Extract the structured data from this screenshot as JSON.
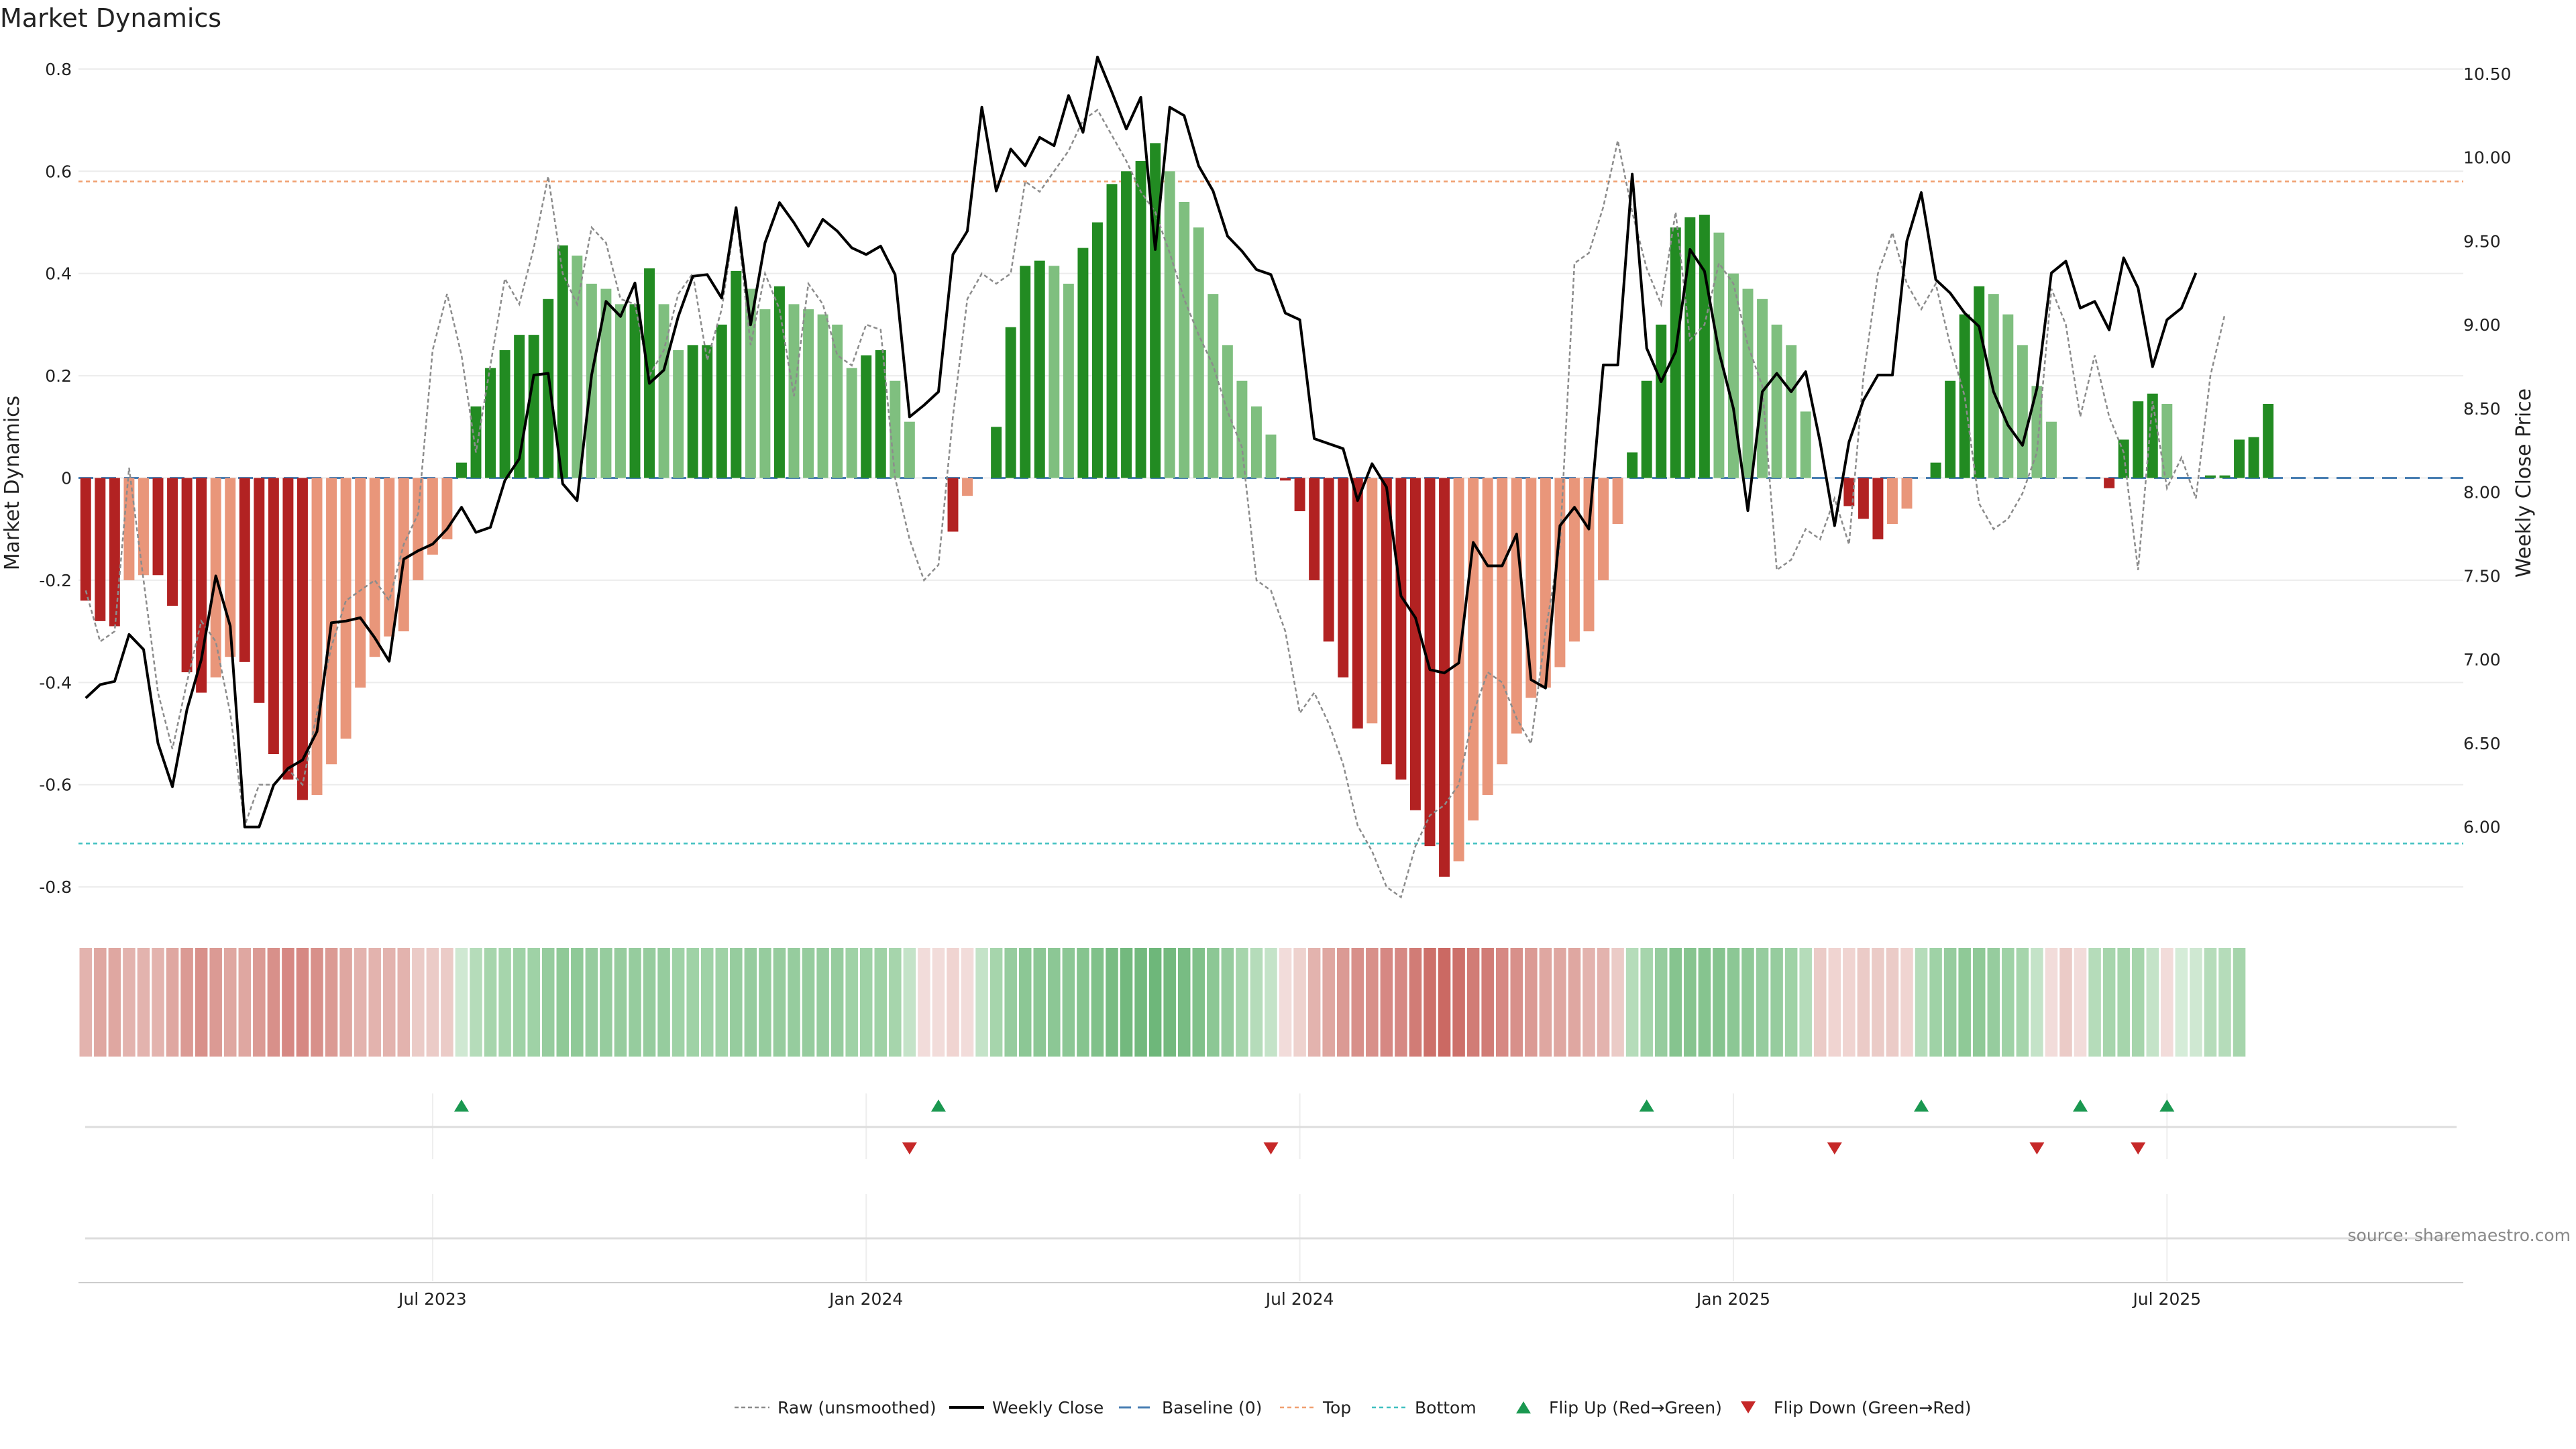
{
  "chart_data": {
    "type": "bar",
    "title": "Market Dynamics",
    "ylabel": "Market Dynamics",
    "y2label": "Weekly Close Price",
    "source": "source: sharemaestro.com",
    "ylim": [
      -0.83,
      0.83
    ],
    "y2lim": [
      5.55,
      10.62
    ],
    "yticks": [
      "0.8",
      "0.6",
      "0.4",
      "0.2",
      "0",
      "-0.2",
      "-0.4",
      "-0.6",
      "-0.8"
    ],
    "yticks_values": [
      0.8,
      0.6,
      0.4,
      0.2,
      0,
      -0.2,
      -0.4,
      -0.6,
      -0.8
    ],
    "y2ticks": [
      "10.50",
      "10.00",
      "9.50",
      "9.00",
      "8.50",
      "8.00",
      "7.50",
      "7.00",
      "6.50",
      "6.00"
    ],
    "y2ticks_values": [
      10.5,
      10.0,
      9.5,
      9.0,
      8.5,
      8.0,
      7.5,
      7.0,
      6.5,
      6.0
    ],
    "xticks": [
      "Jul 2023",
      "Jan 2024",
      "Jul 2024",
      "Jan 2025",
      "Jul 2025"
    ],
    "xticks_week_index": [
      24,
      54,
      84,
      114,
      144
    ],
    "top_line": 0.58,
    "bottom_line": -0.715,
    "n_weeks": 165,
    "bars": [
      -0.24,
      -0.28,
      -0.29,
      -0.2,
      -0.19,
      -0.19,
      -0.25,
      -0.38,
      -0.42,
      -0.39,
      -0.35,
      -0.36,
      -0.44,
      -0.54,
      -0.59,
      -0.63,
      -0.62,
      -0.56,
      -0.51,
      -0.41,
      -0.35,
      -0.31,
      -0.3,
      -0.2,
      -0.15,
      -0.12,
      0.03,
      0.14,
      0.215,
      0.25,
      0.28,
      0.28,
      0.35,
      0.455,
      0.435,
      0.38,
      0.37,
      0.34,
      0.34,
      0.41,
      0.34,
      0.25,
      0.26,
      0.26,
      0.3,
      0.405,
      0.37,
      0.33,
      0.375,
      0.34,
      0.33,
      0.32,
      0.3,
      0.215,
      0.24,
      0.25,
      0.19,
      0.11,
      0,
      0,
      -0.105,
      -0.035,
      0,
      0.1,
      0.295,
      0.415,
      0.425,
      0.415,
      0.38,
      0.45,
      0.5,
      0.575,
      0.6,
      0.62,
      0.655,
      0.6,
      0.54,
      0.49,
      0.36,
      0.26,
      0.19,
      0.14,
      0.085,
      -0.005,
      -0.065,
      -0.2,
      -0.32,
      -0.39,
      -0.49,
      -0.48,
      -0.56,
      -0.59,
      -0.65,
      -0.72,
      -0.78,
      -0.75,
      -0.67,
      -0.62,
      -0.56,
      -0.5,
      -0.43,
      -0.41,
      -0.37,
      -0.32,
      -0.3,
      -0.2,
      -0.09,
      0.05,
      0.19,
      0.3,
      0.49,
      0.51,
      0.515,
      0.48,
      0.4,
      0.37,
      0.35,
      0.3,
      0.26,
      0.13,
      0,
      0,
      -0.055,
      -0.08,
      -0.12,
      -0.09,
      -0.06,
      0,
      0.03,
      0.19,
      0.32,
      0.375,
      0.36,
      0.32,
      0.26,
      0.18,
      0.11,
      0,
      0,
      0,
      -0.02,
      0.075,
      0.15,
      0.165,
      0.145,
      0,
      0,
      0.005,
      0.005,
      0.075,
      0.08,
      0.145
    ],
    "raw": [
      -0.22,
      -0.32,
      -0.3,
      0.02,
      -0.2,
      -0.42,
      -0.53,
      -0.4,
      -0.28,
      -0.32,
      -0.46,
      -0.68,
      -0.6,
      -0.6,
      -0.57,
      -0.6,
      -0.46,
      -0.33,
      -0.24,
      -0.22,
      -0.2,
      -0.24,
      -0.13,
      -0.07,
      0.25,
      0.36,
      0.24,
      0.05,
      0.22,
      0.39,
      0.34,
      0.45,
      0.59,
      0.4,
      0.34,
      0.49,
      0.46,
      0.35,
      0.34,
      0.2,
      0.25,
      0.36,
      0.4,
      0.23,
      0.33,
      0.52,
      0.26,
      0.4,
      0.33,
      0.16,
      0.38,
      0.34,
      0.24,
      0.22,
      0.3,
      0.29,
      0.0,
      -0.12,
      -0.2,
      -0.17,
      0.12,
      0.35,
      0.4,
      0.38,
      0.4,
      0.58,
      0.56,
      0.6,
      0.64,
      0.7,
      0.72,
      0.67,
      0.62,
      0.56,
      0.52,
      0.44,
      0.35,
      0.28,
      0.22,
      0.13,
      0.06,
      -0.2,
      -0.22,
      -0.3,
      -0.46,
      -0.42,
      -0.48,
      -0.56,
      -0.68,
      -0.73,
      -0.8,
      -0.82,
      -0.72,
      -0.66,
      -0.64,
      -0.6,
      -0.46,
      -0.38,
      -0.4,
      -0.47,
      -0.52,
      -0.3,
      -0.13,
      0.42,
      0.44,
      0.53,
      0.66,
      0.52,
      0.41,
      0.34,
      0.52,
      0.27,
      0.3,
      0.42,
      0.38,
      0.26,
      0.18,
      -0.18,
      -0.16,
      -0.1,
      -0.12,
      -0.04,
      -0.13,
      0.2,
      0.4,
      0.48,
      0.38,
      0.33,
      0.38,
      0.26,
      0.16,
      -0.05,
      -0.1,
      -0.08,
      -0.03,
      0.05,
      0.37,
      0.3,
      0.12,
      0.24,
      0.12,
      0.05,
      -0.18,
      0.15,
      -0.02,
      0.04,
      -0.04,
      0.2,
      0.32
    ],
    "price": [
      6.77,
      6.85,
      6.87,
      7.15,
      7.06,
      6.5,
      6.24,
      6.7,
      7.0,
      7.5,
      7.2,
      6.0,
      6.0,
      6.25,
      6.35,
      6.4,
      6.57,
      7.22,
      7.23,
      7.25,
      7.13,
      6.99,
      7.6,
      7.65,
      7.69,
      7.78,
      7.91,
      7.76,
      7.79,
      8.07,
      8.2,
      8.7,
      8.71,
      8.05,
      7.95,
      8.7,
      9.14,
      9.05,
      9.25,
      8.65,
      8.73,
      9.05,
      9.29,
      9.3,
      9.16,
      9.7,
      9.0,
      9.49,
      9.73,
      9.61,
      9.47,
      9.63,
      9.56,
      9.46,
      9.42,
      9.47,
      9.3,
      8.45,
      8.52,
      8.6,
      9.42,
      9.56,
      10.3,
      9.8,
      10.05,
      9.95,
      10.12,
      10.07,
      10.37,
      10.15,
      10.6,
      10.39,
      10.17,
      10.36,
      9.45,
      10.3,
      10.25,
      9.95,
      9.8,
      9.53,
      9.44,
      9.33,
      9.3,
      9.07,
      9.03,
      8.32,
      8.29,
      8.26,
      7.95,
      8.17,
      8.03,
      7.38,
      7.25,
      6.94,
      6.92,
      6.98,
      7.7,
      7.56,
      7.56,
      7.75,
      6.88,
      6.83,
      7.8,
      7.91,
      7.78,
      8.76,
      8.76,
      9.9,
      8.86,
      8.66,
      8.84,
      9.45,
      9.32,
      8.84,
      8.5,
      7.89,
      8.6,
      8.71,
      8.6,
      8.72,
      8.3,
      7.8,
      8.3,
      8.55,
      8.7,
      8.7,
      9.5,
      9.79,
      9.27,
      9.19,
      9.07,
      8.99,
      8.6,
      8.4,
      8.28,
      8.62,
      9.31,
      9.38,
      9.1,
      9.14,
      8.97,
      9.4,
      9.22,
      8.75,
      9.03,
      9.1,
      9.31
    ],
    "shade_colors": [
      "#e3b3ae",
      "#dfa7a1",
      "#dfa7a1",
      "#e3b3ae",
      "#e3b3ae",
      "#e3b3ae",
      "#dfa7a1",
      "#db9a94",
      "#d8908a",
      "#db9a94",
      "#dfa7a1",
      "#dfa7a1",
      "#db9a94",
      "#d8908a",
      "#d68883",
      "#d68883",
      "#d8908a",
      "#db9a94",
      "#dfa7a1",
      "#e3b3ae",
      "#e3b3ae",
      "#e3b3ae",
      "#e3b3ae",
      "#ebcbc7",
      "#ebcbc7",
      "#ebcbc7",
      "#cfe8d2",
      "#b5dcba",
      "#a6d5ac",
      "#a6d5ac",
      "#9fd2a6",
      "#9fd2a6",
      "#96cc9e",
      "#8fc997",
      "#8fc997",
      "#96cc9e",
      "#96cc9e",
      "#96cc9e",
      "#96cc9e",
      "#96cc9e",
      "#96cc9e",
      "#9fd2a6",
      "#9fd2a6",
      "#9fd2a6",
      "#9fd2a6",
      "#96cc9e",
      "#96cc9e",
      "#96cc9e",
      "#96cc9e",
      "#96cc9e",
      "#96cc9e",
      "#96cc9e",
      "#96cc9e",
      "#9fd2a6",
      "#9fd2a6",
      "#9fd2a6",
      "#a6d5ac",
      "#c4e3c8",
      "#f2dcda",
      "#f2dcda",
      "#f0d4d1",
      "#f2dcda",
      "#c4e3c8",
      "#a6d5ac",
      "#96cc9e",
      "#8cc795",
      "#8cc795",
      "#8cc795",
      "#8cc795",
      "#86c48f",
      "#80c18a",
      "#78bc83",
      "#73b97e",
      "#73b97e",
      "#6eb77a",
      "#73b97e",
      "#78bc83",
      "#80c18a",
      "#8cc795",
      "#96cc9e",
      "#a6d5ac",
      "#b5dcba",
      "#c4e3c8",
      "#f2dcda",
      "#eed2ce",
      "#e3b3ae",
      "#dfa7a1",
      "#db9a94",
      "#d8908a",
      "#d8908a",
      "#d68883",
      "#d68883",
      "#d17c76",
      "#cd706a",
      "#cb6963",
      "#cd706a",
      "#d17c76",
      "#d17c76",
      "#d68883",
      "#d8908a",
      "#db9a94",
      "#dfa7a1",
      "#dfa7a1",
      "#dfa7a1",
      "#e3b3ae",
      "#e3b3ae",
      "#ebcbc7",
      "#b5dcba",
      "#a6d5ac",
      "#96cc9e",
      "#86c48f",
      "#86c48f",
      "#86c48f",
      "#86c48f",
      "#8cc795",
      "#8fc997",
      "#96cc9e",
      "#96cc9e",
      "#9fd2a6",
      "#b5dcba",
      "#ebcbc7",
      "#f0d4d1",
      "#f0d4d1",
      "#ebcbc7",
      "#ebcbc7",
      "#ebcbc7",
      "#f0d4d1",
      "#b5dcba",
      "#9fd2a6",
      "#96cc9e",
      "#8fc997",
      "#8fc997",
      "#96cc9e",
      "#9fd2a6",
      "#a6d5ac",
      "#c4e3c8",
      "#f2dcda",
      "#ebcbc7",
      "#f2dcda",
      "#b5dcba",
      "#a6d5ac",
      "#a6d5ac",
      "#a6d5ac",
      "#c4e3c8",
      "#f2dcda",
      "#d5ecd8",
      "#cfe8d2",
      "#b5dcba",
      "#b5dcba",
      "#a6d5ac"
    ],
    "flip_up_week_index": [
      26,
      59,
      108,
      127,
      138,
      144
    ],
    "flip_down_week_index": [
      57,
      82,
      121,
      135,
      142
    ],
    "legend": [
      "Raw (unsmoothed)",
      "Weekly Close",
      "Baseline (0)",
      "Top",
      "Bottom",
      "Flip Up (Red→Green)",
      "Flip Down (Green→Red)"
    ],
    "colors": {
      "green_strong": "#228b22",
      "green_light": "#7fbf7f",
      "red_strong": "#b22222",
      "red_light": "#e9967a",
      "price_line": "#000000",
      "raw_line": "#8c8c8c",
      "baseline": "#4a7fb3",
      "top_line": "#f0a070",
      "bottom_line": "#40c0c0",
      "flip_up": "#1a9850",
      "flip_down": "#c62828"
    }
  }
}
